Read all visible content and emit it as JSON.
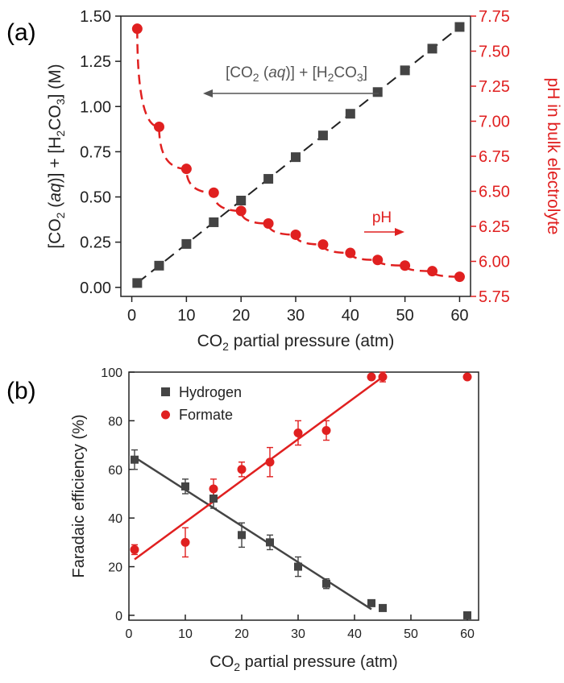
{
  "chart_data": [
    {
      "panel": "(a)",
      "type": "scatter",
      "xlabel": "CO2 partial pressure (atm)",
      "xlabel_main": "CO",
      "xlabel_sub": "2",
      "xlabel_rest": " partial pressure (atm)",
      "ylabel_left": "[CO2 (aq)] + [H2CO3] (M)",
      "ylabel_right": "pH in bulk electrolyte",
      "xlim": [
        -2,
        62
      ],
      "ylim_left": [
        -0.05,
        1.5
      ],
      "ylim_right": [
        5.75,
        7.75
      ],
      "xticks": [
        "0",
        "10",
        "20",
        "30",
        "40",
        "50",
        "60"
      ],
      "yticks_left": [
        "0.00",
        "0.25",
        "0.50",
        "0.75",
        "1.00",
        "1.25",
        "1.50"
      ],
      "yticks_right": [
        "5.75",
        "6.00",
        "6.25",
        "6.50",
        "6.75",
        "7.00",
        "7.25",
        "7.50",
        "7.75"
      ],
      "series": [
        {
          "name": "[CO2 (aq)] + [H2CO3]",
          "axis": "left",
          "color": "#444444",
          "marker": "square",
          "x": [
            1,
            5,
            10,
            15,
            20,
            25,
            30,
            35,
            40,
            45,
            50,
            55,
            60
          ],
          "y": [
            0.024,
            0.12,
            0.24,
            0.36,
            0.48,
            0.6,
            0.72,
            0.84,
            0.96,
            1.08,
            1.2,
            1.32,
            1.44
          ]
        },
        {
          "name": "pH",
          "axis": "right",
          "color": "#e02020",
          "marker": "circle",
          "x": [
            1,
            5,
            10,
            15,
            20,
            25,
            30,
            35,
            40,
            45,
            50,
            55,
            60
          ],
          "y": [
            7.66,
            6.96,
            6.66,
            6.49,
            6.36,
            6.27,
            6.19,
            6.12,
            6.06,
            6.01,
            5.97,
            5.93,
            5.89
          ]
        }
      ],
      "annotations": [
        {
          "text_parts": [
            "[CO",
            "2",
            " (",
            "aq",
            ")] + [H",
            "2",
            "CO",
            "3",
            "]"
          ],
          "arrow": "left",
          "color": "#555555"
        },
        {
          "text": "pH",
          "arrow": "right",
          "color": "#e02020"
        }
      ]
    },
    {
      "panel": "(b)",
      "type": "scatter",
      "xlabel": "CO2 partial pressure (atm)",
      "xlabel_main": "CO",
      "xlabel_sub": "2",
      "xlabel_rest": " partial pressure (atm)",
      "ylabel": "Faradaic efficiency (%)",
      "xlim": [
        0,
        62
      ],
      "ylim": [
        -2,
        100
      ],
      "xticks": [
        "0",
        "10",
        "20",
        "30",
        "40",
        "50",
        "60"
      ],
      "yticks": [
        "0",
        "20",
        "40",
        "60",
        "80",
        "100"
      ],
      "legend_position": "top-left",
      "series": [
        {
          "name": "Hydrogen",
          "color": "#444444",
          "marker": "square",
          "x": [
            1,
            10,
            15,
            20,
            25,
            30,
            35,
            43,
            45,
            60
          ],
          "y": [
            64,
            53,
            48,
            33,
            30,
            20,
            13,
            5,
            3,
            0
          ],
          "err": [
            4,
            3,
            4,
            5,
            3,
            4,
            2,
            1,
            0,
            0
          ],
          "fit": {
            "x": [
              1,
              43
            ],
            "y": [
              65,
              2.5
            ]
          }
        },
        {
          "name": "Formate",
          "color": "#e02020",
          "marker": "circle",
          "x": [
            1,
            10,
            15,
            20,
            25,
            30,
            35,
            43,
            45,
            60
          ],
          "y": [
            27,
            30,
            52,
            60,
            63,
            75,
            76,
            98,
            98,
            98
          ],
          "err": [
            2,
            6,
            4,
            3,
            6,
            5,
            4,
            1,
            2,
            0
          ],
          "fit": {
            "x": [
              1,
              45
            ],
            "y": [
              23,
              98
            ]
          }
        }
      ]
    }
  ]
}
